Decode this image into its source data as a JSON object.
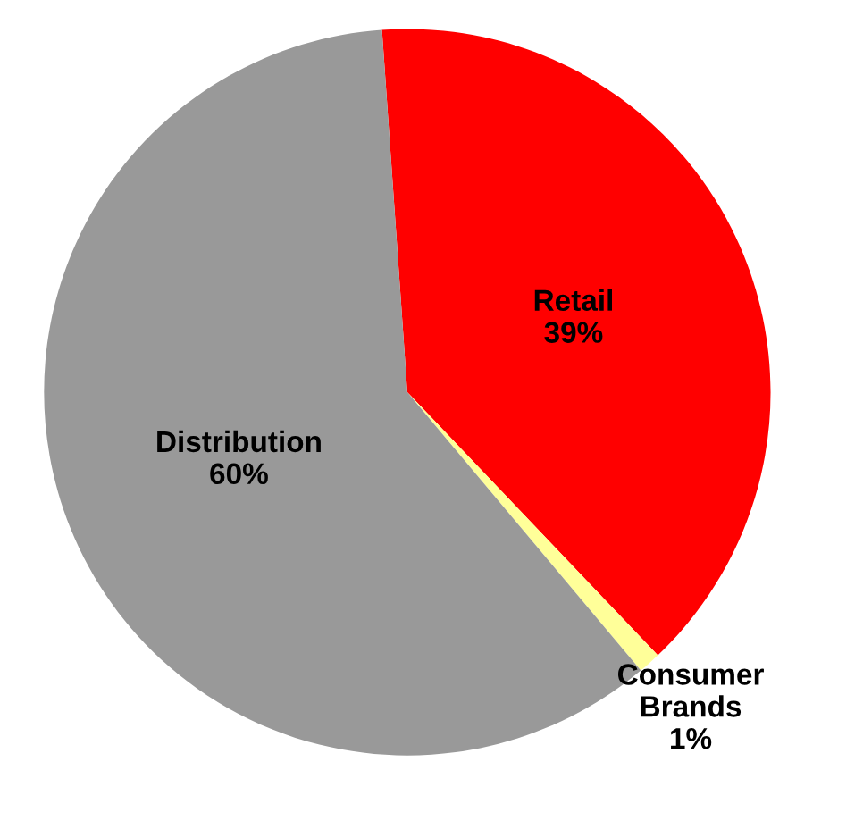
{
  "chart_data": {
    "type": "pie",
    "categories": [
      "Retail",
      "Consumer Brands",
      "Distribution"
    ],
    "values": [
      39,
      1,
      60
    ],
    "colors": [
      "#ff0000",
      "#ffff99",
      "#999999"
    ],
    "value_labels": [
      "39%",
      "1%",
      "60%"
    ]
  }
}
